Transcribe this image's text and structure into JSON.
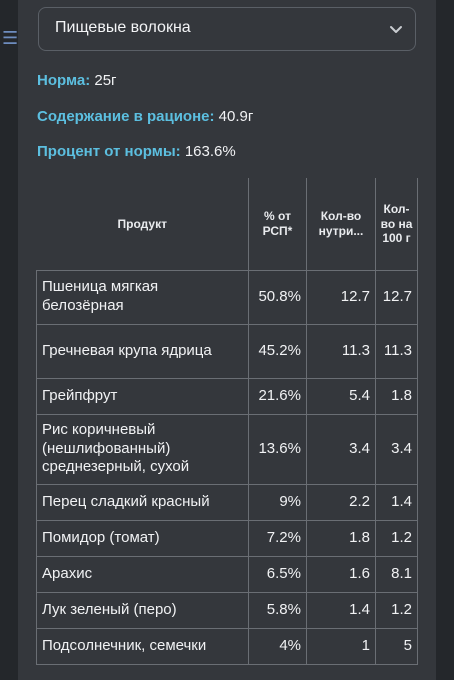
{
  "selector": {
    "label": "Пищевые волокна"
  },
  "stats": {
    "norm_label": "Норма:",
    "norm_value": "25г",
    "content_label": "Содержание в рационе:",
    "content_value": "40.9г",
    "percent_label": "Процент от нормы:",
    "percent_value": "163.6%"
  },
  "table": {
    "headers": {
      "product": "Продукт",
      "rsp": "% от РСП*",
      "amount": "Кол-во нутри...",
      "per100": "Кол-во на 100 г"
    },
    "rows": [
      {
        "product": "Пшеница мягкая белозёрная",
        "rsp": "50.8%",
        "amount": "12.7",
        "per100": "12.7"
      },
      {
        "product": "Гречневая крупа ядрица",
        "rsp": "45.2%",
        "amount": "11.3",
        "per100": "11.3"
      },
      {
        "product": "Грейпфрут",
        "rsp": "21.6%",
        "amount": "5.4",
        "per100": "1.8"
      },
      {
        "product": "Рис коричневый (нешлифованный) среднезерный, сухой",
        "rsp": "13.6%",
        "amount": "3.4",
        "per100": "3.4"
      },
      {
        "product": "Перец сладкий красный",
        "rsp": "9%",
        "amount": "2.2",
        "per100": "1.4"
      },
      {
        "product": "Помидор (томат)",
        "rsp": "7.2%",
        "amount": "1.8",
        "per100": "1.2"
      },
      {
        "product": "Арахис",
        "rsp": "6.5%",
        "amount": "1.6",
        "per100": "8.1"
      },
      {
        "product": "Лук зеленый (перо)",
        "rsp": "5.8%",
        "amount": "1.4",
        "per100": "1.2"
      },
      {
        "product": "Подсолнечник, семечки",
        "rsp": "4%",
        "amount": "1",
        "per100": "5"
      }
    ]
  }
}
